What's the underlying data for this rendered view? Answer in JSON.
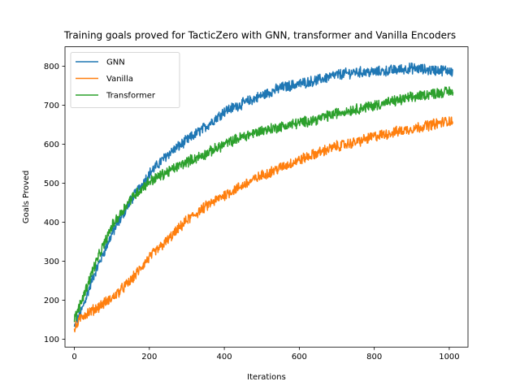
{
  "chart_data": {
    "type": "line",
    "title": "Training goals proved for TacticZero with GNN, transformer and Vanilla Encoders",
    "xlabel": "Iterations",
    "ylabel": "Goals Proved",
    "xlim": [
      -25,
      1050
    ],
    "ylim": [
      80,
      850
    ],
    "xticks": [
      0,
      200,
      400,
      600,
      800,
      1000
    ],
    "yticks": [
      100,
      200,
      300,
      400,
      500,
      600,
      700,
      800
    ],
    "grid": false,
    "legend_position": "upper-left",
    "noise_amplitude": 12,
    "series": [
      {
        "name": "GNN",
        "color": "#1f77b4",
        "x": [
          0,
          20,
          50,
          100,
          150,
          200,
          250,
          300,
          350,
          400,
          450,
          500,
          550,
          600,
          650,
          700,
          750,
          800,
          850,
          900,
          950,
          1000,
          1010
        ],
        "y": [
          130,
          175,
          260,
          370,
          455,
          525,
          575,
          610,
          645,
          685,
          705,
          725,
          745,
          755,
          765,
          778,
          785,
          785,
          790,
          795,
          790,
          790,
          785
        ]
      },
      {
        "name": "Vanilla",
        "color": "#ff7f0e",
        "x": [
          0,
          20,
          50,
          100,
          150,
          200,
          250,
          300,
          350,
          400,
          450,
          500,
          550,
          600,
          650,
          700,
          750,
          800,
          850,
          900,
          950,
          1000,
          1010
        ],
        "y": [
          125,
          160,
          175,
          205,
          250,
          310,
          355,
          405,
          440,
          470,
          495,
          520,
          540,
          560,
          578,
          595,
          605,
          620,
          630,
          640,
          650,
          660,
          660
        ]
      },
      {
        "name": "Transformer",
        "color": "#2ca02c",
        "x": [
          0,
          20,
          50,
          100,
          150,
          200,
          250,
          300,
          350,
          400,
          450,
          500,
          550,
          600,
          650,
          700,
          750,
          800,
          850,
          900,
          950,
          1000,
          1010
        ],
        "y": [
          150,
          200,
          280,
          390,
          460,
          505,
          530,
          555,
          575,
          600,
          620,
          635,
          645,
          655,
          665,
          680,
          690,
          700,
          710,
          720,
          730,
          735,
          735
        ]
      }
    ]
  }
}
